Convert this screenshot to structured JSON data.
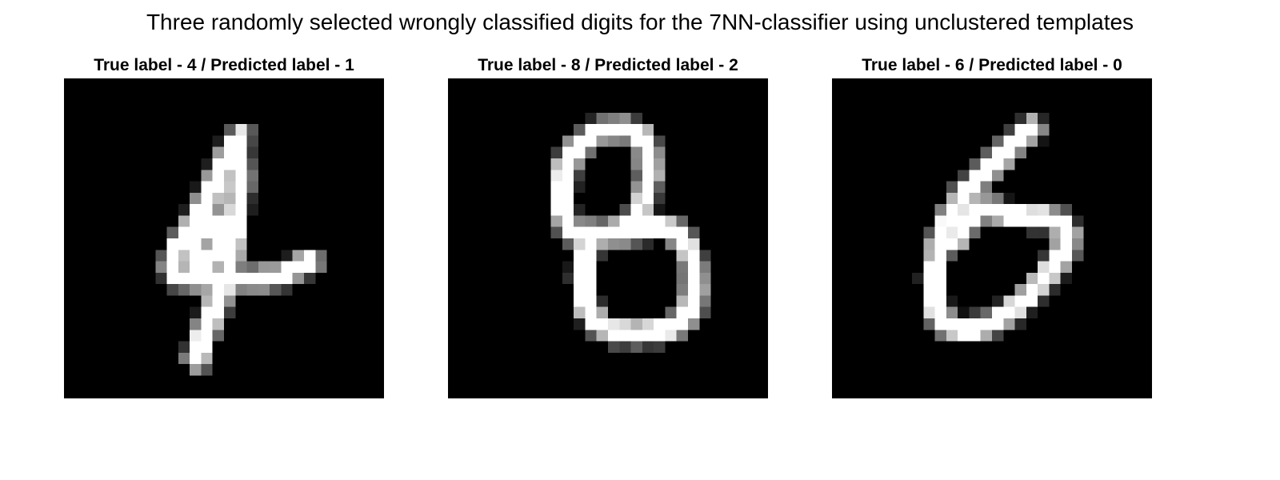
{
  "figure": {
    "title": "Three randomly selected wrongly classified digits for the 7NN-classifier using unclustered templates",
    "panels": [
      {
        "title": "True label - 4 / Predicted label - 1",
        "true_label": 4,
        "predicted_label": 1
      },
      {
        "title": "True label - 8 / Predicted label - 2",
        "true_label": 8,
        "predicted_label": 2
      },
      {
        "title": "True label - 6 / Predicted label - 0",
        "true_label": 6,
        "predicted_label": 0
      }
    ],
    "colormap": "gray",
    "background_color": "#000000",
    "foreground_color": "#ffffff"
  }
}
